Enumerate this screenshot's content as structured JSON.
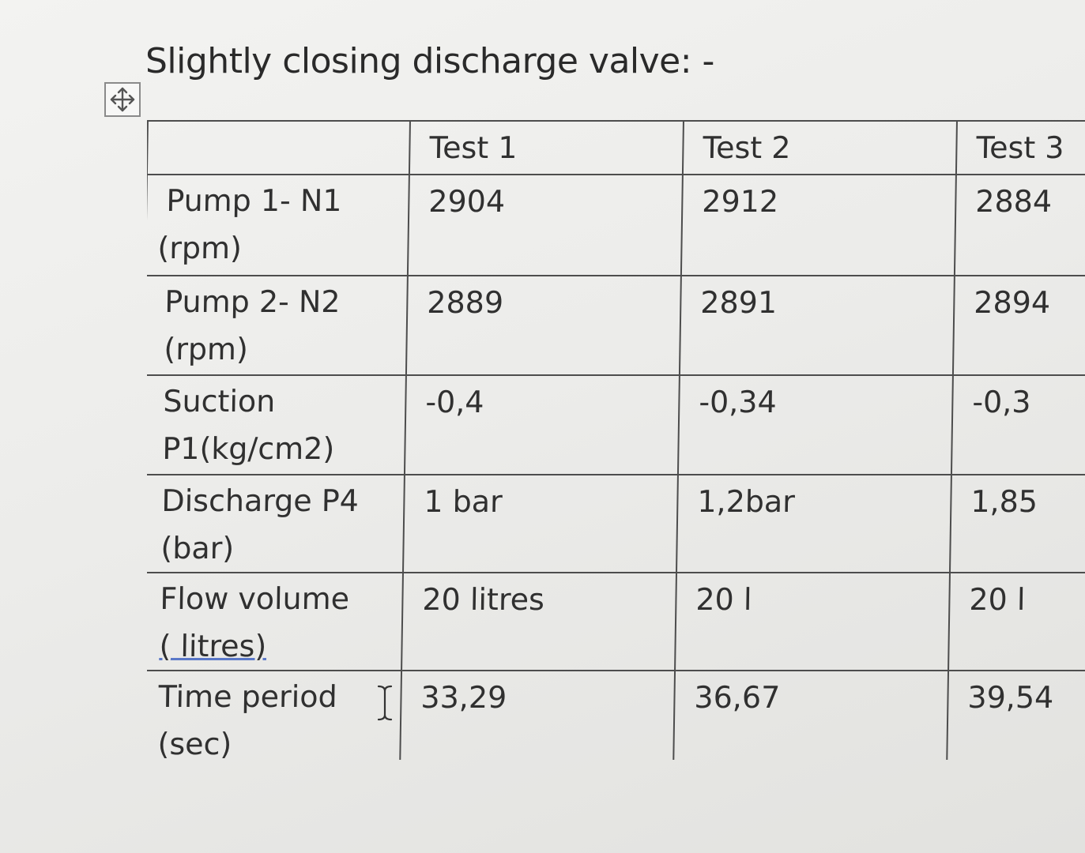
{
  "heading": "Slightly closing discharge valve: -",
  "icons": {
    "move_handle": "four-arrow-move-icon",
    "cursor": "i-beam-cursor-icon"
  },
  "table": {
    "header": [
      "",
      "Test 1",
      "Test 2",
      "Test 3"
    ],
    "rows": [
      {
        "label_line1": "Pump 1- N1",
        "label_line2": "(rpm)",
        "values": [
          "2904",
          "2912",
          "2884"
        ]
      },
      {
        "label_line1": "Pump 2- N2",
        "label_line2": "(rpm)",
        "values": [
          "2889",
          "2891",
          "2894"
        ]
      },
      {
        "label_line1": "Suction",
        "label_line2": "P1(kg/cm2)",
        "values": [
          "-0,4",
          "-0,34",
          "-0,3"
        ]
      },
      {
        "label_line1": "Discharge P4",
        "label_line2": "(bar)",
        "values": [
          "1 bar",
          "1,2bar",
          "1,85"
        ]
      },
      {
        "label_line1": "Flow volume",
        "label_line2": "( litres)",
        "values": [
          "20 litres",
          "20 l",
          "20 l"
        ]
      },
      {
        "label_line1": "Time period",
        "label_line2": "(sec)",
        "values": [
          "33,29",
          "36,67",
          "39,54"
        ]
      }
    ]
  }
}
